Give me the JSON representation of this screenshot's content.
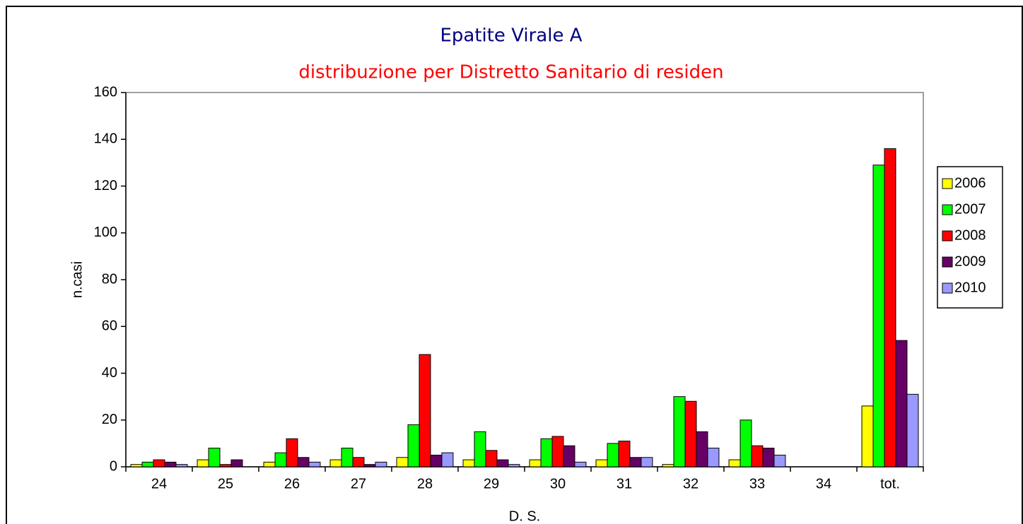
{
  "chart_data": {
    "type": "bar",
    "title": "Epatite Virale A",
    "subtitle": "distribuzione per Distretto Sanitario di residen",
    "x_label": "D. S.",
    "y_label": "n.casi",
    "categories": [
      "24",
      "25",
      "26",
      "27",
      "28",
      "29",
      "30",
      "31",
      "32",
      "33",
      "34",
      "tot."
    ],
    "series": [
      {
        "name": "2006",
        "color": "#ffff00",
        "values": [
          1,
          3,
          2,
          3,
          4,
          3,
          3,
          3,
          1,
          3,
          0,
          26
        ]
      },
      {
        "name": "2007",
        "color": "#00ff00",
        "values": [
          2,
          8,
          6,
          8,
          18,
          15,
          12,
          10,
          30,
          20,
          0,
          129
        ]
      },
      {
        "name": "2008",
        "color": "#ff0000",
        "values": [
          3,
          1,
          12,
          4,
          48,
          7,
          13,
          11,
          28,
          9,
          0,
          136
        ]
      },
      {
        "name": "2009",
        "color": "#660066",
        "values": [
          2,
          3,
          4,
          1,
          5,
          3,
          9,
          4,
          15,
          8,
          0,
          54
        ]
      },
      {
        "name": "2010",
        "color": "#9999ff",
        "values": [
          1,
          0,
          2,
          2,
          6,
          1,
          2,
          4,
          8,
          5,
          0,
          31
        ]
      }
    ],
    "ylim": [
      0,
      160
    ],
    "yticks": [
      0,
      20,
      40,
      60,
      80,
      100,
      120,
      140,
      160
    ],
    "legend": "right"
  }
}
